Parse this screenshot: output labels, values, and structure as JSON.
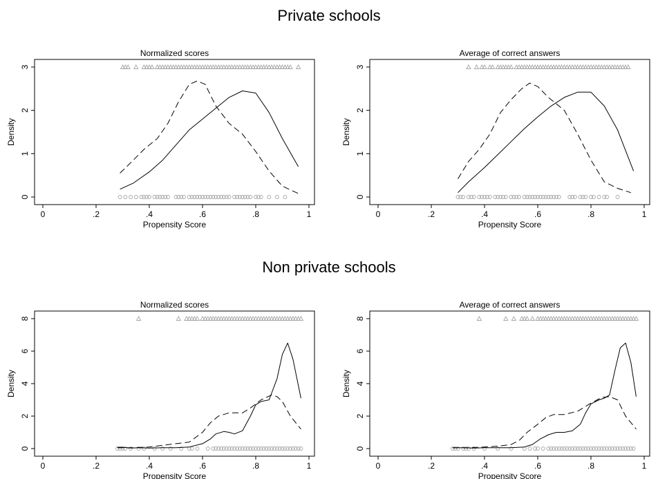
{
  "section_titles": {
    "private": "Private schools",
    "nonprivate": "Non private schools"
  },
  "chart_data": [
    {
      "type": "line",
      "group": "Private schools",
      "title": "Normalized scores",
      "xlabel": "Propensity Score",
      "ylabel": "Density",
      "xlim": [
        0,
        1
      ],
      "ylim": [
        0,
        3
      ],
      "x_ticks": [
        "0",
        ".2",
        ".4",
        ".6",
        ".8",
        "1"
      ],
      "y_ticks": [
        "0",
        "1",
        "2",
        "3"
      ],
      "series": [
        {
          "style": "solid",
          "x": [
            0.29,
            0.34,
            0.4,
            0.45,
            0.5,
            0.55,
            0.6,
            0.65,
            0.7,
            0.75,
            0.8,
            0.85,
            0.9,
            0.96
          ],
          "y": [
            0.18,
            0.32,
            0.58,
            0.85,
            1.2,
            1.55,
            1.8,
            2.05,
            2.3,
            2.45,
            2.4,
            1.95,
            1.35,
            0.7
          ]
        },
        {
          "style": "dashed",
          "x": [
            0.29,
            0.34,
            0.38,
            0.43,
            0.47,
            0.51,
            0.55,
            0.58,
            0.61,
            0.65,
            0.7,
            0.75,
            0.8,
            0.85,
            0.9,
            0.96
          ],
          "y": [
            0.55,
            0.85,
            1.1,
            1.35,
            1.7,
            2.2,
            2.6,
            2.68,
            2.6,
            2.1,
            1.7,
            1.45,
            1.05,
            0.6,
            0.25,
            0.08
          ]
        }
      ],
      "markers_top": {
        "symbol": "triangle",
        "y": 3,
        "x": [
          0.3,
          0.31,
          0.32,
          0.35,
          0.38,
          0.39,
          0.4,
          0.41,
          0.43,
          0.44,
          0.45,
          0.46,
          0.47,
          0.48,
          0.49,
          0.5,
          0.51,
          0.52,
          0.53,
          0.54,
          0.55,
          0.56,
          0.57,
          0.58,
          0.59,
          0.6,
          0.61,
          0.62,
          0.63,
          0.64,
          0.65,
          0.66,
          0.67,
          0.68,
          0.69,
          0.7,
          0.71,
          0.72,
          0.73,
          0.74,
          0.75,
          0.76,
          0.77,
          0.78,
          0.79,
          0.8,
          0.81,
          0.82,
          0.83,
          0.84,
          0.85,
          0.86,
          0.87,
          0.88,
          0.89,
          0.9,
          0.91,
          0.92,
          0.93,
          0.96
        ]
      },
      "markers_bottom": {
        "symbol": "circle",
        "y": 0,
        "x": [
          0.29,
          0.31,
          0.33,
          0.35,
          0.37,
          0.38,
          0.39,
          0.4,
          0.42,
          0.43,
          0.44,
          0.45,
          0.46,
          0.47,
          0.5,
          0.51,
          0.52,
          0.53,
          0.55,
          0.56,
          0.57,
          0.58,
          0.59,
          0.6,
          0.61,
          0.62,
          0.63,
          0.64,
          0.65,
          0.66,
          0.67,
          0.68,
          0.69,
          0.7,
          0.72,
          0.73,
          0.74,
          0.75,
          0.76,
          0.77,
          0.78,
          0.8,
          0.81,
          0.82,
          0.85,
          0.88,
          0.91
        ]
      }
    },
    {
      "type": "line",
      "group": "Private schools",
      "title": "Average of correct answers",
      "xlabel": "Propensity Score",
      "ylabel": "Density",
      "xlim": [
        0,
        1
      ],
      "ylim": [
        0,
        3
      ],
      "x_ticks": [
        "0",
        ".2",
        ".4",
        ".6",
        ".8",
        "1"
      ],
      "y_ticks": [
        "0",
        "1",
        "2",
        "3"
      ],
      "series": [
        {
          "style": "solid",
          "x": [
            0.3,
            0.34,
            0.4,
            0.45,
            0.5,
            0.55,
            0.6,
            0.65,
            0.7,
            0.75,
            0.8,
            0.85,
            0.9,
            0.96
          ],
          "y": [
            0.1,
            0.35,
            0.68,
            0.98,
            1.28,
            1.58,
            1.85,
            2.1,
            2.3,
            2.42,
            2.42,
            2.1,
            1.55,
            0.6
          ]
        },
        {
          "style": "dashed",
          "x": [
            0.3,
            0.34,
            0.38,
            0.42,
            0.46,
            0.5,
            0.54,
            0.57,
            0.6,
            0.64,
            0.7,
            0.75,
            0.8,
            0.85,
            0.9,
            0.95
          ],
          "y": [
            0.42,
            0.82,
            1.1,
            1.45,
            1.95,
            2.25,
            2.5,
            2.63,
            2.55,
            2.3,
            2.0,
            1.45,
            0.85,
            0.35,
            0.2,
            0.1
          ]
        }
      ],
      "markers_top": {
        "symbol": "triangle",
        "y": 3,
        "x": [
          0.34,
          0.37,
          0.39,
          0.4,
          0.42,
          0.43,
          0.45,
          0.46,
          0.47,
          0.48,
          0.49,
          0.5,
          0.52,
          0.53,
          0.54,
          0.55,
          0.56,
          0.57,
          0.58,
          0.59,
          0.6,
          0.61,
          0.62,
          0.63,
          0.64,
          0.65,
          0.66,
          0.67,
          0.68,
          0.69,
          0.7,
          0.71,
          0.72,
          0.73,
          0.74,
          0.75,
          0.76,
          0.77,
          0.78,
          0.79,
          0.8,
          0.81,
          0.82,
          0.83,
          0.84,
          0.85,
          0.86,
          0.87,
          0.88,
          0.89,
          0.9,
          0.91,
          0.92,
          0.93,
          0.94
        ]
      },
      "markers_bottom": {
        "symbol": "circle",
        "y": 0,
        "x": [
          0.3,
          0.31,
          0.32,
          0.34,
          0.35,
          0.36,
          0.38,
          0.39,
          0.4,
          0.41,
          0.42,
          0.44,
          0.45,
          0.46,
          0.47,
          0.48,
          0.5,
          0.51,
          0.52,
          0.53,
          0.55,
          0.56,
          0.57,
          0.58,
          0.59,
          0.6,
          0.61,
          0.62,
          0.63,
          0.64,
          0.65,
          0.66,
          0.67,
          0.68,
          0.72,
          0.73,
          0.74,
          0.76,
          0.77,
          0.78,
          0.8,
          0.81,
          0.83,
          0.85,
          0.86,
          0.9
        ]
      }
    },
    {
      "type": "line",
      "group": "Non private schools",
      "title": "Normalized scores",
      "xlabel": "Propensity Score",
      "ylabel": "Density",
      "xlim": [
        0,
        1
      ],
      "ylim": [
        0,
        8
      ],
      "x_ticks": [
        "0",
        ".2",
        ".4",
        ".6",
        ".8",
        "1"
      ],
      "y_ticks": [
        "0",
        "2",
        "4",
        "6",
        "8"
      ],
      "series": [
        {
          "style": "solid",
          "x": [
            0.28,
            0.3,
            0.33,
            0.36,
            0.4,
            0.45,
            0.5,
            0.55,
            0.6,
            0.63,
            0.65,
            0.68,
            0.7,
            0.72,
            0.75,
            0.78,
            0.8,
            0.82,
            0.85,
            0.88,
            0.9,
            0.92,
            0.94,
            0.97
          ],
          "y": [
            0.08,
            0.08,
            0.03,
            0.05,
            0.03,
            0.05,
            0.05,
            0.1,
            0.3,
            0.6,
            0.9,
            1.05,
            1.0,
            0.9,
            1.1,
            2.0,
            2.7,
            2.9,
            3.0,
            4.3,
            5.8,
            6.5,
            5.5,
            3.1
          ]
        },
        {
          "style": "dashed",
          "x": [
            0.28,
            0.33,
            0.4,
            0.45,
            0.5,
            0.55,
            0.6,
            0.63,
            0.66,
            0.7,
            0.75,
            0.78,
            0.82,
            0.86,
            0.88,
            0.9,
            0.93,
            0.97
          ],
          "y": [
            0.05,
            0.05,
            0.1,
            0.2,
            0.3,
            0.4,
            1.0,
            1.6,
            2.0,
            2.2,
            2.2,
            2.5,
            3.0,
            3.3,
            3.2,
            2.9,
            2.0,
            1.2
          ]
        }
      ],
      "markers_top": {
        "symbol": "triangle",
        "y": 8,
        "x": [
          0.36,
          0.51,
          0.54,
          0.55,
          0.56,
          0.57,
          0.58,
          0.6,
          0.61,
          0.62,
          0.63,
          0.64,
          0.65,
          0.66,
          0.67,
          0.68,
          0.69,
          0.7,
          0.71,
          0.72,
          0.73,
          0.74,
          0.75,
          0.76,
          0.77,
          0.78,
          0.79,
          0.8,
          0.81,
          0.82,
          0.83,
          0.84,
          0.85,
          0.86,
          0.87,
          0.88,
          0.89,
          0.9,
          0.91,
          0.92,
          0.93,
          0.94,
          0.95,
          0.96,
          0.97
        ]
      },
      "markers_bottom": {
        "symbol": "circle",
        "y": 0,
        "x": [
          0.28,
          0.29,
          0.3,
          0.31,
          0.33,
          0.36,
          0.38,
          0.42,
          0.45,
          0.48,
          0.52,
          0.55,
          0.56,
          0.58,
          0.62,
          0.64,
          0.65,
          0.66,
          0.67,
          0.68,
          0.69,
          0.7,
          0.71,
          0.72,
          0.73,
          0.74,
          0.75,
          0.76,
          0.77,
          0.78,
          0.79,
          0.8,
          0.81,
          0.82,
          0.83,
          0.84,
          0.85,
          0.86,
          0.87,
          0.88,
          0.89,
          0.9,
          0.91,
          0.92,
          0.93,
          0.94,
          0.95,
          0.96,
          0.97
        ]
      }
    },
    {
      "type": "line",
      "group": "Non private schools",
      "title": "Average of correct answers",
      "xlabel": "Propensity Score",
      "ylabel": "Density",
      "xlim": [
        0,
        1
      ],
      "ylim": [
        0,
        8
      ],
      "x_ticks": [
        "0",
        ".2",
        ".4",
        ".6",
        ".8",
        "1"
      ],
      "y_ticks": [
        "0",
        "2",
        "4",
        "6",
        "8"
      ],
      "series": [
        {
          "style": "solid",
          "x": [
            0.28,
            0.32,
            0.36,
            0.4,
            0.45,
            0.5,
            0.55,
            0.58,
            0.61,
            0.64,
            0.67,
            0.7,
            0.73,
            0.76,
            0.78,
            0.8,
            0.83,
            0.85,
            0.87,
            0.89,
            0.91,
            0.93,
            0.95,
            0.97
          ],
          "y": [
            0.05,
            0.05,
            0.03,
            0.05,
            0.05,
            0.05,
            0.1,
            0.25,
            0.6,
            0.85,
            1.0,
            1.0,
            1.1,
            1.5,
            2.2,
            2.75,
            3.0,
            3.1,
            3.3,
            4.8,
            6.2,
            6.5,
            5.3,
            3.2
          ]
        },
        {
          "style": "dashed",
          "x": [
            0.28,
            0.33,
            0.4,
            0.45,
            0.5,
            0.53,
            0.56,
            0.6,
            0.63,
            0.66,
            0.7,
            0.75,
            0.8,
            0.84,
            0.87,
            0.9,
            0.93,
            0.97
          ],
          "y": [
            0.05,
            0.05,
            0.1,
            0.15,
            0.25,
            0.5,
            1.0,
            1.5,
            1.9,
            2.1,
            2.1,
            2.3,
            2.8,
            3.15,
            3.2,
            3.0,
            2.0,
            1.2
          ]
        }
      ],
      "markers_top": {
        "symbol": "triangle",
        "y": 8,
        "x": [
          0.38,
          0.48,
          0.51,
          0.54,
          0.55,
          0.56,
          0.58,
          0.6,
          0.61,
          0.62,
          0.63,
          0.64,
          0.65,
          0.66,
          0.67,
          0.68,
          0.69,
          0.7,
          0.71,
          0.72,
          0.73,
          0.74,
          0.75,
          0.76,
          0.77,
          0.78,
          0.79,
          0.8,
          0.81,
          0.82,
          0.83,
          0.84,
          0.85,
          0.86,
          0.87,
          0.88,
          0.89,
          0.9,
          0.91,
          0.92,
          0.93,
          0.94,
          0.95,
          0.96,
          0.97
        ]
      },
      "markers_bottom": {
        "symbol": "circle",
        "y": 0,
        "x": [
          0.28,
          0.29,
          0.3,
          0.32,
          0.33,
          0.34,
          0.36,
          0.4,
          0.45,
          0.5,
          0.55,
          0.57,
          0.59,
          0.6,
          0.62,
          0.64,
          0.65,
          0.66,
          0.67,
          0.68,
          0.69,
          0.7,
          0.71,
          0.72,
          0.73,
          0.74,
          0.75,
          0.76,
          0.77,
          0.78,
          0.79,
          0.8,
          0.81,
          0.82,
          0.83,
          0.84,
          0.85,
          0.86,
          0.87,
          0.88,
          0.89,
          0.9,
          0.91,
          0.92,
          0.93,
          0.94,
          0.95,
          0.96
        ]
      }
    }
  ]
}
